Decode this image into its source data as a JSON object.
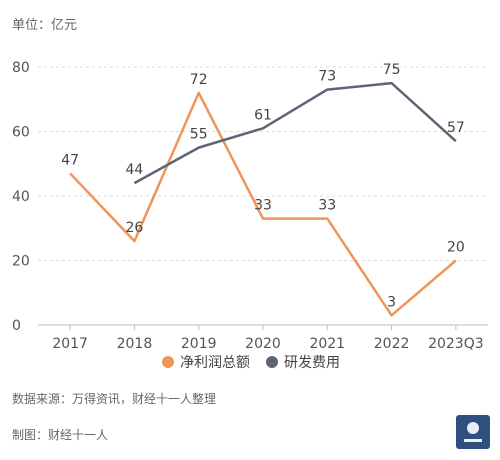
{
  "unit_label": "单位：亿元",
  "source_note": "数据来源：万得资讯，财经十一人整理",
  "maker_note": "制图：财经十一人",
  "logo": {
    "icon": "caijing-logo"
  },
  "chart_data": {
    "type": "line",
    "title": "",
    "xlabel": "",
    "ylabel": "",
    "categories": [
      "2017",
      "2018",
      "2019",
      "2020",
      "2021",
      "2022",
      "2023Q3"
    ],
    "ylim": [
      0,
      80
    ],
    "yticks": [
      0,
      20,
      40,
      60,
      80
    ],
    "grid": true,
    "legend": "bottom",
    "series": [
      {
        "name": "净利润总额",
        "color": "#f0955a",
        "values": [
          47,
          26,
          72,
          33,
          33,
          3,
          20
        ]
      },
      {
        "name": "研发费用",
        "color": "#5e6478",
        "values": [
          null,
          44,
          55,
          61,
          73,
          75,
          57
        ]
      }
    ]
  }
}
